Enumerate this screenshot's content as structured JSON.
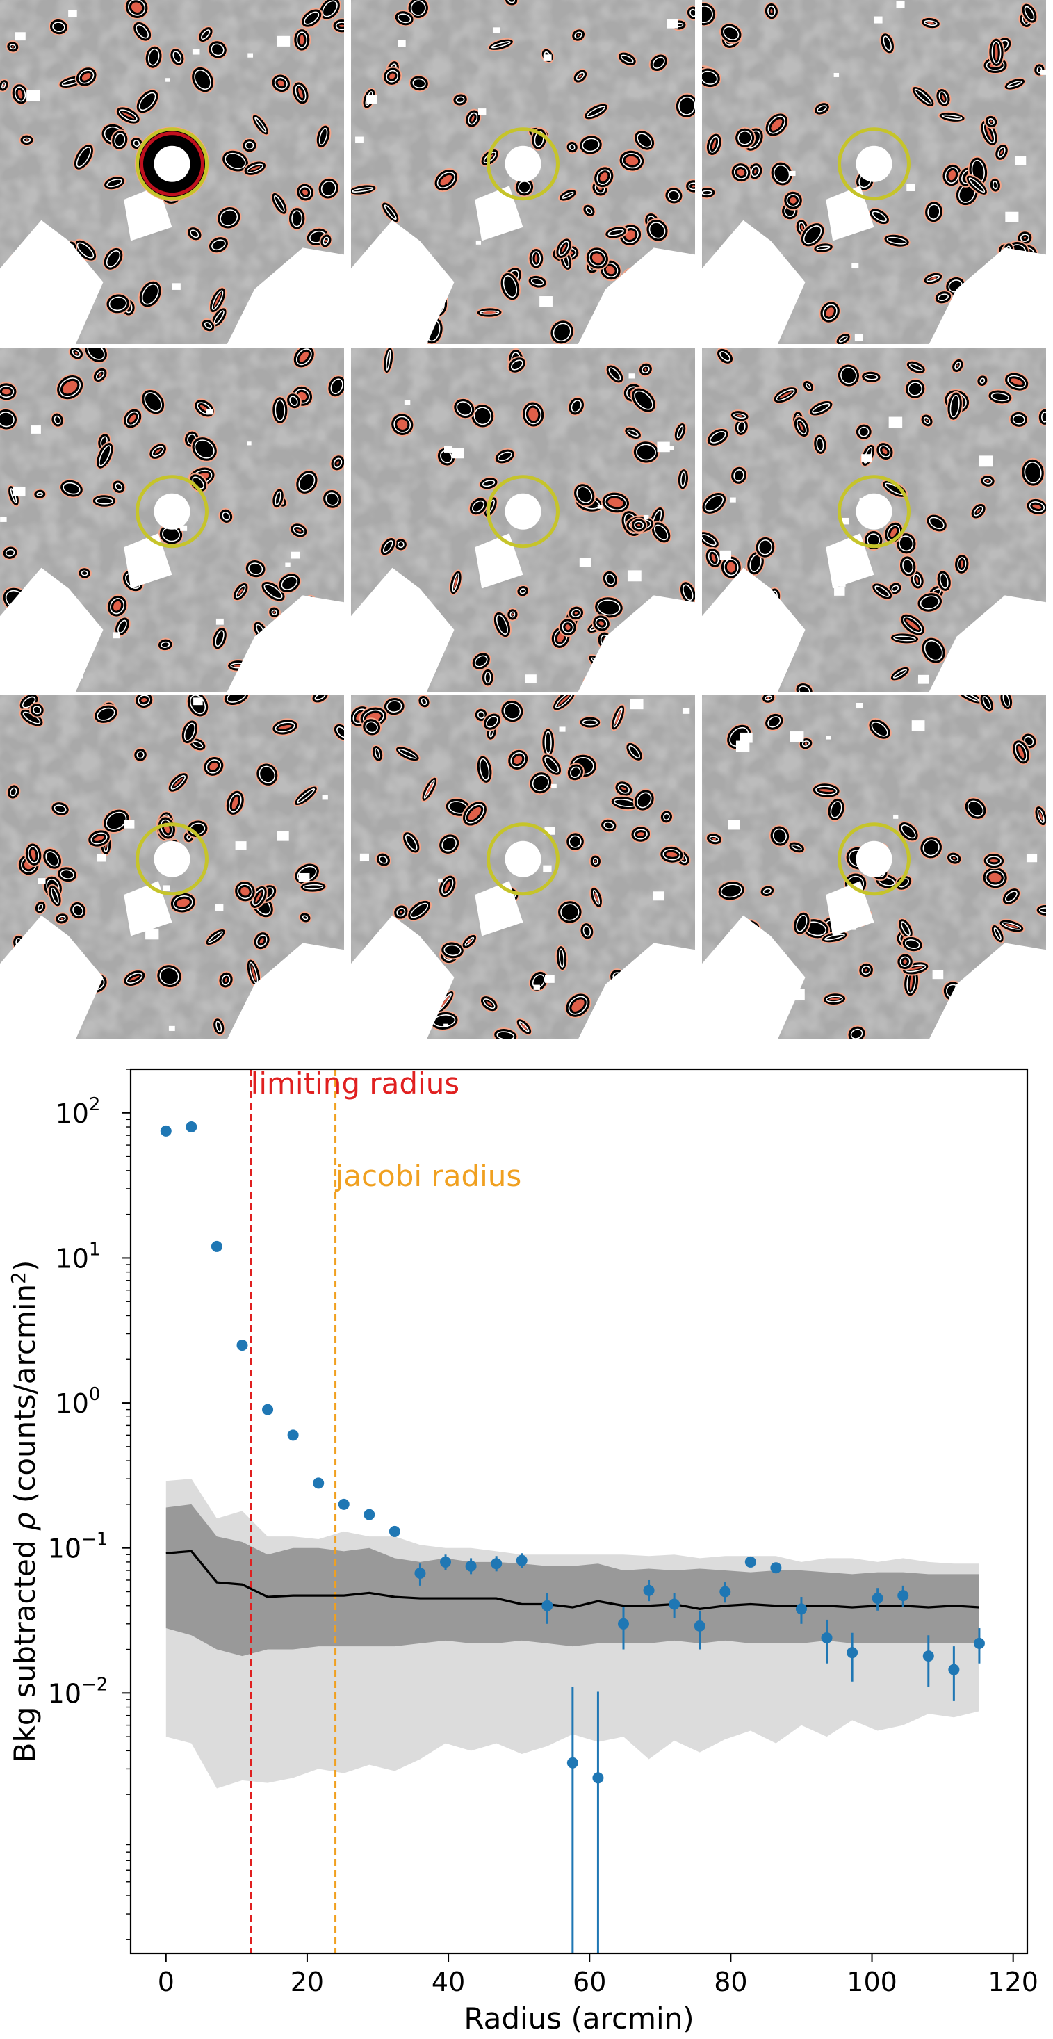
{
  "maps": {
    "panels": [
      {
        "id": 1,
        "central_blob": true
      },
      {
        "id": 2,
        "central_blob": false
      },
      {
        "id": 3,
        "central_blob": false
      },
      {
        "id": 4,
        "central_blob": false
      },
      {
        "id": 5,
        "central_blob": false
      },
      {
        "id": 6,
        "central_blob": false
      },
      {
        "id": 7,
        "central_blob": false
      },
      {
        "id": 8,
        "central_blob": false
      },
      {
        "id": 9,
        "central_blob": false
      }
    ],
    "colors": {
      "circle": "#c6c42a",
      "contour_outer": "#f4a58a",
      "contour_inner": "#e0604a",
      "blob": "#000000",
      "core": "#c0101e"
    }
  },
  "chart_data": {
    "type": "scatter",
    "title": "",
    "xlabel": "Radius (arcmin)",
    "ylabel": "Bkg subtracted ρ (counts/arcmin²)",
    "ylabel_parts": {
      "prefix": "Bkg subtracted ",
      "rho": "ρ",
      "mid": " (counts/arcmin",
      "sup": "2",
      "suffix": ")"
    },
    "xlim": [
      -5,
      122
    ],
    "ylim": [
      0.00016,
      200
    ],
    "yscale": "log",
    "grid": false,
    "xticks": [
      0,
      20,
      40,
      60,
      80,
      100,
      120
    ],
    "xtick_labels": [
      "0",
      "20",
      "40",
      "60",
      "80",
      "100",
      "120"
    ],
    "yticks": [
      0.01,
      0.1,
      1,
      10,
      100
    ],
    "ytick_labels": [
      {
        "base": "10",
        "exp": "−2"
      },
      {
        "base": "10",
        "exp": "−1"
      },
      {
        "base": "10",
        "exp": "0"
      },
      {
        "base": "10",
        "exp": "1"
      },
      {
        "base": "10",
        "exp": "2"
      }
    ],
    "vlines": [
      {
        "x": 12,
        "label": "limiting radius",
        "color": "#e02020"
      },
      {
        "x": 24,
        "label": "jacobi radius",
        "color": "#f0a020"
      }
    ],
    "series": [
      {
        "type": "scatter",
        "color": "#1f77b4",
        "x": [
          0,
          3.6,
          7.2,
          10.8,
          14.4,
          18,
          21.6,
          25.2,
          28.8,
          32.4,
          36,
          39.6,
          43.2,
          46.8,
          50.4,
          54,
          57.6,
          61.2,
          64.8,
          68.4,
          72,
          75.6,
          79.2,
          82.8,
          86.4,
          90,
          93.6,
          97.2,
          100.8,
          104.4,
          108,
          111.6,
          115.2
        ],
        "y": [
          75,
          80,
          12,
          2.5,
          0.9,
          0.6,
          0.28,
          0.2,
          0.17,
          0.13,
          0.067,
          0.08,
          0.075,
          0.078,
          0.082,
          0.04,
          0.0033,
          0.0026,
          0.03,
          0.051,
          0.041,
          0.029,
          0.05,
          0.08,
          0.073,
          0.038,
          0.024,
          0.019,
          0.045,
          0.047,
          0.018,
          0.0145,
          0.022
        ],
        "err_low": [
          null,
          null,
          null,
          null,
          null,
          null,
          null,
          null,
          null,
          null,
          0.055,
          0.07,
          0.066,
          0.069,
          0.073,
          0.03,
          0.00016,
          0.00016,
          0.02,
          0.043,
          0.033,
          0.02,
          0.042,
          null,
          null,
          0.03,
          0.016,
          0.012,
          0.037,
          0.039,
          0.011,
          0.0088,
          0.016
        ],
        "err_high": [
          null,
          null,
          null,
          null,
          null,
          null,
          null,
          null,
          null,
          null,
          0.078,
          0.09,
          0.085,
          0.088,
          0.092,
          0.049,
          0.011,
          0.0102,
          0.039,
          0.06,
          0.049,
          0.037,
          0.058,
          null,
          null,
          0.046,
          0.032,
          0.026,
          0.053,
          0.055,
          0.025,
          0.021,
          0.028
        ]
      },
      {
        "type": "line",
        "color": "#000000",
        "x": [
          0,
          3.6,
          7.2,
          10.8,
          14.4,
          18,
          21.6,
          25.2,
          28.8,
          32.4,
          36,
          39.6,
          43.2,
          46.8,
          50.4,
          54,
          57.6,
          61.2,
          64.8,
          68.4,
          72,
          75.6,
          79.2,
          82.8,
          86.4,
          90,
          93.6,
          97.2,
          100.8,
          104.4,
          108,
          111.6,
          115.2
        ],
        "y": [
          0.092,
          0.095,
          0.058,
          0.056,
          0.046,
          0.047,
          0.047,
          0.047,
          0.049,
          0.046,
          0.045,
          0.045,
          0.045,
          0.045,
          0.041,
          0.041,
          0.039,
          0.043,
          0.04,
          0.04,
          0.041,
          0.038,
          0.04,
          0.041,
          0.04,
          0.04,
          0.04,
          0.039,
          0.04,
          0.04,
          0.039,
          0.04,
          0.039
        ]
      },
      {
        "type": "band",
        "color": "#999999",
        "x": [
          0,
          3.6,
          7.2,
          10.8,
          14.4,
          18,
          21.6,
          25.2,
          28.8,
          32.4,
          36,
          39.6,
          43.2,
          46.8,
          50.4,
          54,
          57.6,
          61.2,
          64.8,
          68.4,
          72,
          75.6,
          79.2,
          82.8,
          86.4,
          90,
          93.6,
          97.2,
          100.8,
          104.4,
          108,
          111.6,
          115.2
        ],
        "low": [
          0.028,
          0.025,
          0.02,
          0.018,
          0.02,
          0.02,
          0.021,
          0.021,
          0.021,
          0.021,
          0.022,
          0.023,
          0.022,
          0.022,
          0.023,
          0.022,
          0.021,
          0.022,
          0.022,
          0.022,
          0.023,
          0.022,
          0.023,
          0.022,
          0.022,
          0.022,
          0.023,
          0.022,
          0.022,
          0.022,
          0.022,
          0.022,
          0.022
        ],
        "high": [
          0.19,
          0.2,
          0.12,
          0.11,
          0.09,
          0.1,
          0.1,
          0.095,
          0.1,
          0.085,
          0.08,
          0.085,
          0.08,
          0.08,
          0.078,
          0.075,
          0.075,
          0.078,
          0.07,
          0.072,
          0.07,
          0.072,
          0.07,
          0.068,
          0.07,
          0.07,
          0.068,
          0.066,
          0.068,
          0.068,
          0.066,
          0.066,
          0.066
        ]
      },
      {
        "type": "band",
        "color": "#dcdcdc",
        "x": [
          0,
          3.6,
          7.2,
          10.8,
          14.4,
          18,
          21.6,
          25.2,
          28.8,
          32.4,
          36,
          39.6,
          43.2,
          46.8,
          50.4,
          54,
          57.6,
          61.2,
          64.8,
          68.4,
          72,
          75.6,
          79.2,
          82.8,
          86.4,
          90,
          93.6,
          97.2,
          100.8,
          104.4,
          108,
          111.6,
          115.2
        ],
        "low": [
          0.005,
          0.0045,
          0.0022,
          0.0025,
          0.0024,
          0.0026,
          0.003,
          0.0028,
          0.0032,
          0.0029,
          0.0035,
          0.0045,
          0.004,
          0.0045,
          0.0038,
          0.0043,
          0.0052,
          0.0046,
          0.005,
          0.0035,
          0.0047,
          0.0039,
          0.0048,
          0.0055,
          0.0045,
          0.006,
          0.005,
          0.0065,
          0.0055,
          0.006,
          0.0072,
          0.0068,
          0.0075
        ],
        "high": [
          0.29,
          0.3,
          0.16,
          0.18,
          0.12,
          0.12,
          0.115,
          0.13,
          0.12,
          0.12,
          0.105,
          0.1,
          0.1,
          0.095,
          0.09,
          0.09,
          0.09,
          0.09,
          0.09,
          0.088,
          0.09,
          0.085,
          0.088,
          0.088,
          0.088,
          0.08,
          0.085,
          0.085,
          0.08,
          0.085,
          0.08,
          0.078,
          0.078
        ]
      }
    ]
  }
}
